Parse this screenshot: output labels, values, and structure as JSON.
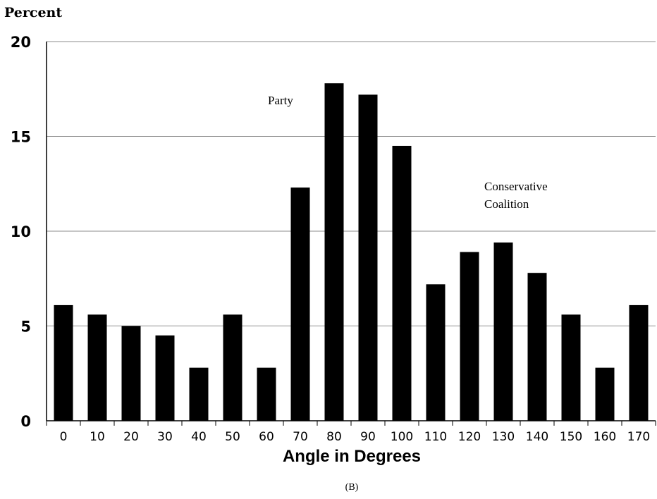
{
  "chart_data": {
    "type": "bar",
    "ylabel": "Percent",
    "xlabel": "Angle in Degrees",
    "caption": "(B)",
    "categories": [
      "0",
      "10",
      "20",
      "30",
      "40",
      "50",
      "60",
      "70",
      "80",
      "90",
      "100",
      "110",
      "120",
      "130",
      "140",
      "150",
      "160",
      "170"
    ],
    "values": [
      6.1,
      5.6,
      5.0,
      4.5,
      2.8,
      5.6,
      2.8,
      12.3,
      17.8,
      17.2,
      14.5,
      7.2,
      8.9,
      9.4,
      7.8,
      5.6,
      2.8,
      6.1
    ],
    "ylim": [
      0,
      20
    ],
    "yticks": [
      0,
      5,
      10,
      15,
      20
    ],
    "grid": true,
    "bar_color": "#000000",
    "annotations": [
      {
        "lines": [
          "Party"
        ],
        "near_category": "80"
      },
      {
        "lines": [
          "Conservative",
          "Coalition"
        ],
        "near_category": "130"
      }
    ]
  }
}
